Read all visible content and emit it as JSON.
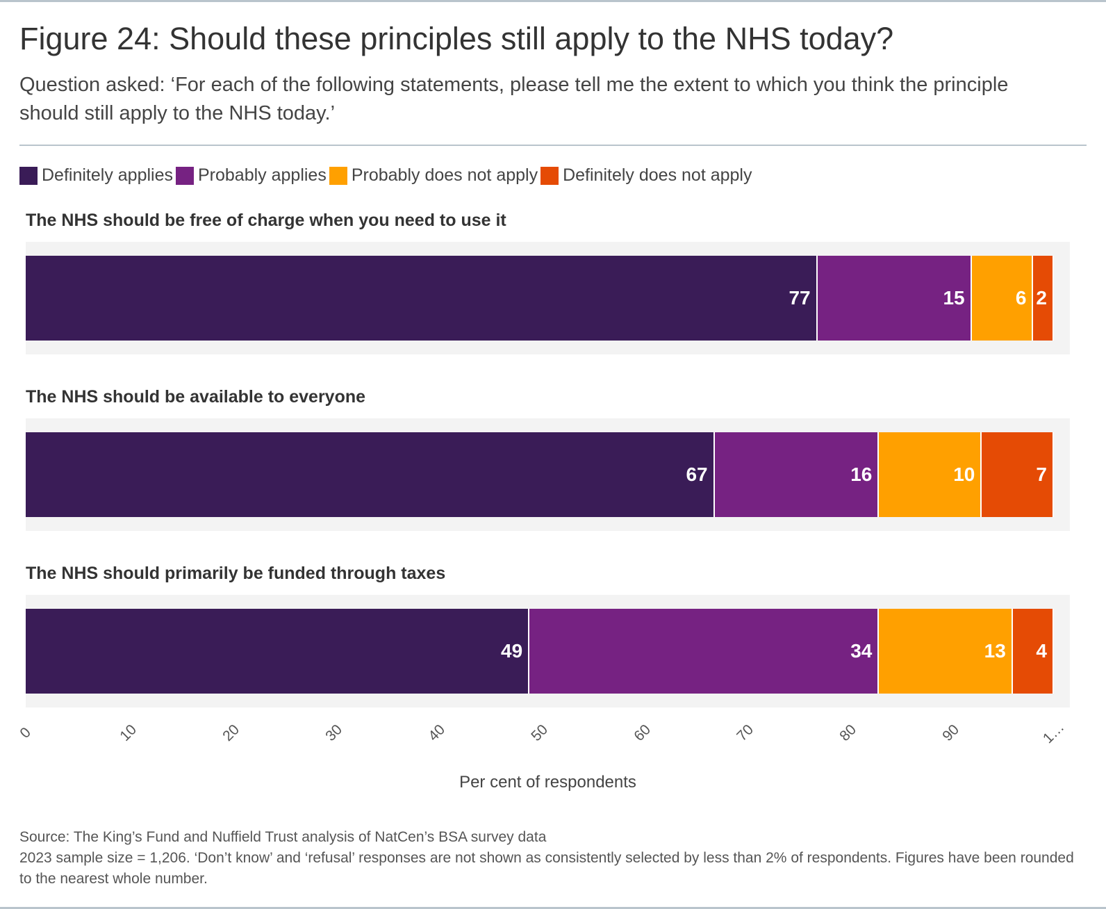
{
  "title": "Figure 24: Should these principles still apply to the NHS today?",
  "subtitle": "Question asked: ‘For each of the following statements, please tell me the extent to which you think the principle should still apply to the NHS today.’",
  "colors": {
    "definitely_applies": "#3a1c57",
    "probably_applies": "#762282",
    "probably_does_not_apply": "#ffa000",
    "definitely_does_not_apply": "#e54b05"
  },
  "chart_data": {
    "type": "bar",
    "orientation": "horizontal",
    "stacked": true,
    "categories": [
      "The NHS should be free of charge when you need to use it",
      "The NHS should be available to everyone",
      "The NHS should primarily be funded through taxes"
    ],
    "series": [
      {
        "name": "Definitely applies",
        "values": [
          77,
          67,
          49
        ]
      },
      {
        "name": "Probably applies",
        "values": [
          15,
          16,
          34
        ]
      },
      {
        "name": "Probably does not apply",
        "values": [
          6,
          10,
          13
        ]
      },
      {
        "name": "Definitely does not apply",
        "values": [
          2,
          7,
          4
        ]
      }
    ],
    "xlabel": "Per cent of respondents",
    "xlim": [
      0,
      100
    ],
    "xticks": [
      "0",
      "10",
      "20",
      "30",
      "40",
      "50",
      "60",
      "70",
      "80",
      "90",
      "1…"
    ],
    "legend_position": "top-left"
  },
  "source": {
    "line1": "Source: The King’s Fund and Nuffield Trust analysis of NatCen’s BSA survey data",
    "line2": "2023 sample size = 1,206. ‘Don’t know’ and ‘refusal’ responses are not shown as consistently selected by less than 2% of respondents. Figures have been rounded to the nearest whole number."
  }
}
